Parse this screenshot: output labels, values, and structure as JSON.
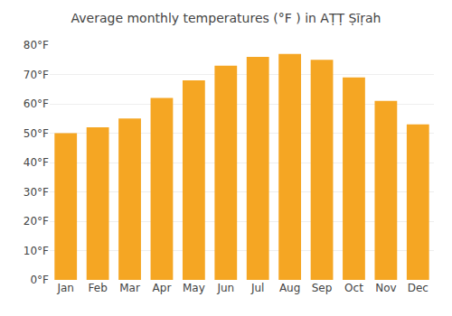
{
  "chart_data": {
    "type": "bar",
    "title": "Average monthly temperatures (°F ) in AṬṬ Ṣīṛah",
    "categories": [
      "Jan",
      "Feb",
      "Mar",
      "Apr",
      "May",
      "Jun",
      "Jul",
      "Aug",
      "Sep",
      "Oct",
      "Nov",
      "Dec"
    ],
    "values": [
      50,
      52,
      55,
      62,
      68,
      73,
      76,
      77,
      75,
      69,
      61,
      53
    ],
    "color": "#F5A623",
    "ylim": [
      0,
      80
    ],
    "yticks": [
      {
        "value": 0,
        "label": "0°F"
      },
      {
        "value": 10,
        "label": "10°F"
      },
      {
        "value": 20,
        "label": "20°F"
      },
      {
        "value": 30,
        "label": "30°F"
      },
      {
        "value": 40,
        "label": "40°F"
      },
      {
        "value": 50,
        "label": "50°F"
      },
      {
        "value": 60,
        "label": "60°F"
      },
      {
        "value": 70,
        "label": "70°F"
      },
      {
        "value": 80,
        "label": "80°F"
      }
    ],
    "grid": true
  }
}
